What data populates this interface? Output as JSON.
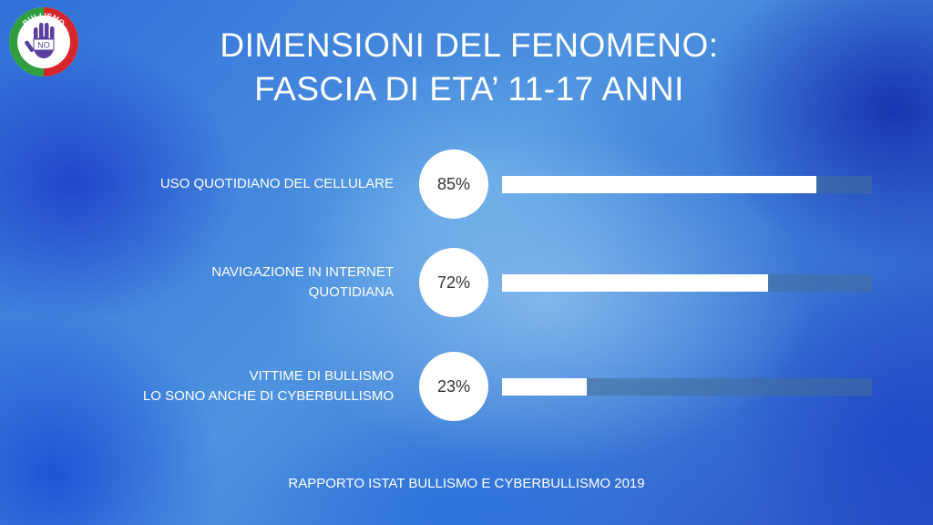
{
  "logo": {
    "text": "BULLISMO NO GRAZIE",
    "colors": {
      "green": "#2e9e3e",
      "red": "#d6262b",
      "white": "#ffffff",
      "hand": "#5a3fa0"
    }
  },
  "header": {
    "title_line1": "DIMENSIONI DEL FENOMENO:",
    "title_line2": "FASCIA DI ETA’ 11-17 ANNI"
  },
  "chart_data": {
    "type": "bar",
    "orientation": "horizontal",
    "categories": [
      "USO QUOTIDIANO DEL CELLULARE",
      "NAVIGAZIONE IN INTERNET QUOTIDIANA",
      "VITTIME DI BULLISMO LO SONO ANCHE DI CYBERBULLISMO"
    ],
    "values": [
      85,
      72,
      23
    ],
    "value_labels": [
      "85%",
      "72%",
      "23%"
    ],
    "xlim": [
      0,
      100
    ],
    "rows": [
      {
        "label_lines": [
          "USO QUOTIDIANO DEL CELLULARE"
        ],
        "value": 85,
        "value_label": "85%"
      },
      {
        "label_lines": [
          "NAVIGAZIONE IN INTERNET",
          "QUOTIDIANA"
        ],
        "value": 72,
        "value_label": "72%"
      },
      {
        "label_lines": [
          "VITTIME DI BULLISMO",
          "LO SONO ANCHE DI CYBERBULLISMO"
        ],
        "value": 23,
        "value_label": "23%"
      }
    ],
    "colors": {
      "fill": "#ffffff",
      "track": "#5b7fa3",
      "value_circle": "#ffffff",
      "value_text": "#333333"
    }
  },
  "footer": {
    "source": "RAPPORTO ISTAT BULLISMO E CYBERBULLISMO 2019"
  }
}
